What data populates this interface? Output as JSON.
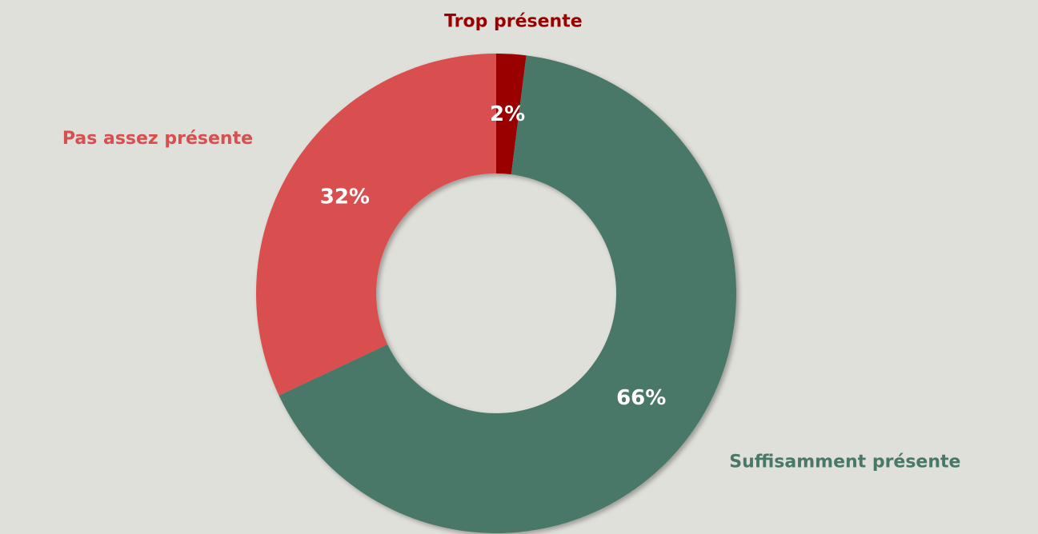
{
  "chart_data": {
    "type": "donut",
    "categories": [
      "Trop présente",
      "Suffisamment présente",
      "Pas assez présente"
    ],
    "values": [
      2,
      66,
      32
    ],
    "value_labels": [
      "2%",
      "66%",
      "32%"
    ],
    "colors": [
      "#9b0000",
      "#4a7868",
      "#d94f4f"
    ]
  }
}
